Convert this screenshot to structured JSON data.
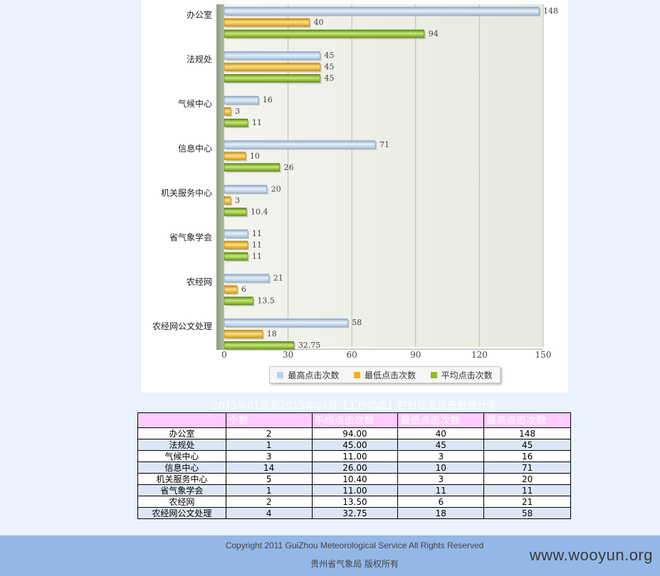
{
  "chart_data": {
    "type": "bar",
    "orientation": "horizontal",
    "categories": [
      "办公室",
      "法规处",
      "气候中心",
      "信息中心",
      "机关服务中心",
      "省气象学会",
      "农经网",
      "农经网公文处理"
    ],
    "series": [
      {
        "name": "最高点击次数",
        "color": "#b8d3ef",
        "values": [
          148,
          45,
          16,
          71,
          20,
          11,
          21,
          58
        ]
      },
      {
        "name": "最低点击次数",
        "color": "#f0b41a",
        "values": [
          40,
          45,
          3,
          10,
          3,
          11,
          6,
          18
        ]
      },
      {
        "name": "平均点击次数",
        "color": "#8dbe22",
        "values": [
          94,
          45,
          11,
          26,
          10.4,
          11,
          13.5,
          32.75
        ]
      }
    ],
    "value_labels": [
      [
        "148",
        "40",
        "94"
      ],
      [
        "45",
        "45",
        "45"
      ],
      [
        "16",
        "3",
        "11"
      ],
      [
        "71",
        "10",
        "26"
      ],
      [
        "20",
        "3",
        "10.4"
      ],
      [
        "11",
        "11",
        "11"
      ],
      [
        "21",
        "6",
        "13.5"
      ],
      [
        "58",
        "18",
        "32.75"
      ]
    ],
    "xlim": [
      0,
      150
    ],
    "xticks": [
      "0",
      "30",
      "60",
      "90",
      "120",
      "150"
    ],
    "grid": true,
    "legend": "bottom",
    "title": "",
    "xlabel": "",
    "ylabel": ""
  },
  "table": {
    "title": "2015年01月到2015年04月【工作动态】栏目信息点击数统计表",
    "headers": [
      "",
      "个数",
      "平均点击次数",
      "最低点击次数",
      "最高点击次数"
    ],
    "rows": [
      [
        "办公室",
        "2",
        "94.00",
        "40",
        "148"
      ],
      [
        "法规处",
        "1",
        "45.00",
        "45",
        "45"
      ],
      [
        "气候中心",
        "3",
        "11.00",
        "3",
        "16"
      ],
      [
        "信息中心",
        "14",
        "26.00",
        "10",
        "71"
      ],
      [
        "机关服务中心",
        "5",
        "10.40",
        "3",
        "20"
      ],
      [
        "省气象学会",
        "1",
        "11.00",
        "11",
        "11"
      ],
      [
        "农经网",
        "2",
        "13.50",
        "6",
        "21"
      ],
      [
        "农经网公文处理",
        "4",
        "32.75",
        "18",
        "58"
      ]
    ]
  },
  "footer": {
    "copyright": "Copyright 2011 GuiZhou Meteorological Service All Rights Reserved",
    "org": "贵州省气象局  版权所有",
    "watermark": "www.wooyun.org"
  }
}
